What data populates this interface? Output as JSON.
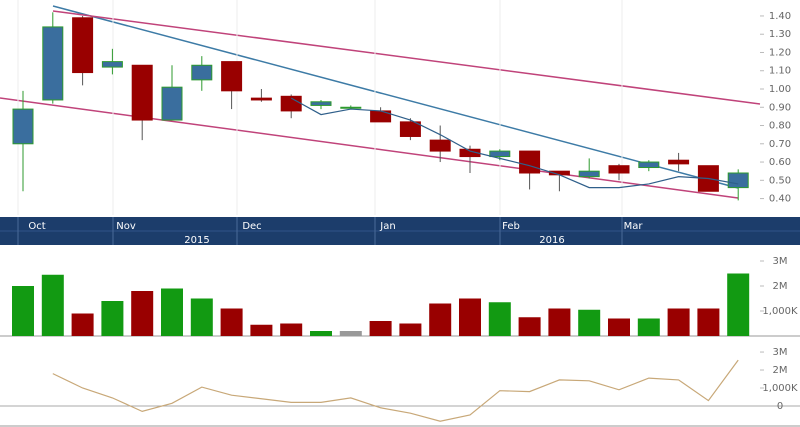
{
  "chart_data": [
    {
      "type": "candlestick",
      "up_color": "#3a6e9e",
      "up_border": "#2e9a2e",
      "down_color": "#990000",
      "open": [
        0.7,
        0.94,
        1.39,
        1.12,
        1.13,
        0.83,
        1.05,
        1.15,
        0.95,
        0.96,
        0.91,
        0.9,
        0.88,
        0.82,
        0.72,
        0.67,
        0.63,
        0.66,
        0.55,
        0.52,
        0.58,
        0.57,
        0.61,
        0.58,
        0.46
      ],
      "high": [
        0.99,
        1.42,
        1.4,
        1.22,
        1.13,
        1.13,
        1.18,
        1.15,
        1.0,
        0.97,
        0.94,
        0.91,
        0.9,
        0.84,
        0.8,
        0.69,
        0.67,
        0.66,
        0.55,
        0.62,
        0.59,
        0.61,
        0.65,
        0.58,
        0.56
      ],
      "low": [
        0.44,
        0.92,
        1.02,
        1.08,
        0.72,
        0.83,
        0.99,
        0.89,
        0.93,
        0.84,
        0.89,
        0.89,
        0.82,
        0.72,
        0.6,
        0.54,
        0.61,
        0.45,
        0.44,
        0.51,
        0.5,
        0.55,
        0.55,
        0.44,
        0.39
      ],
      "close": [
        0.89,
        1.34,
        1.09,
        1.15,
        0.83,
        1.01,
        1.13,
        0.99,
        0.94,
        0.88,
        0.93,
        0.9,
        0.82,
        0.74,
        0.66,
        0.63,
        0.66,
        0.54,
        0.53,
        0.55,
        0.54,
        0.6,
        0.59,
        0.44,
        0.54
      ],
      "ma": [
        null,
        null,
        null,
        null,
        null,
        null,
        null,
        null,
        null,
        0.95,
        0.86,
        0.89,
        0.88,
        0.83,
        0.75,
        0.66,
        0.62,
        0.58,
        0.53,
        0.46,
        0.46,
        0.48,
        0.52,
        0.51,
        0.48
      ],
      "ma_color": "#2f5f8a",
      "ylim": [
        0.31,
        1.46
      ],
      "yticks": [
        {
          "value": 0.4,
          "label": "0.40"
        },
        {
          "value": 0.5,
          "label": "0.50"
        },
        {
          "value": 0.6,
          "label": "0.60"
        },
        {
          "value": 0.7,
          "label": "0.70"
        },
        {
          "value": 0.8,
          "label": "0.80"
        },
        {
          "value": 0.9,
          "label": "0.90"
        },
        {
          "value": 1.0,
          "label": "1.00"
        },
        {
          "value": 1.1,
          "label": "1.10"
        },
        {
          "value": 1.2,
          "label": "1.20"
        },
        {
          "value": 1.3,
          "label": "1.30"
        },
        {
          "value": 1.4,
          "label": "1.40"
        }
      ],
      "months": [
        "Oct",
        "Nov",
        "Dec",
        "Jan",
        "Feb",
        "Mar"
      ],
      "years": [
        "2015",
        "2016"
      ]
    },
    {
      "type": "bar",
      "values": [
        2000000,
        2450000,
        900000,
        1400000,
        1800000,
        1900000,
        1500000,
        1100000,
        450000,
        500000,
        200000,
        200000,
        600000,
        500000,
        1300000,
        1500000,
        1350000,
        750000,
        1100000,
        1050000,
        700000,
        700000,
        1100000,
        1100000,
        2500000
      ],
      "colors": [
        "#129a12",
        "#129a12",
        "#990000",
        "#129a12",
        "#990000",
        "#129a12",
        "#129a12",
        "#990000",
        "#990000",
        "#990000",
        "#129a12",
        "#999999",
        "#990000",
        "#990000",
        "#990000",
        "#990000",
        "#129a12",
        "#990000",
        "#990000",
        "#129a12",
        "#990000",
        "#129a12",
        "#990000",
        "#990000",
        "#129a12"
      ],
      "ylim": [
        0,
        3440000
      ],
      "yticks": [
        {
          "value": 1000000,
          "label": "1,000K"
        },
        {
          "value": 2000000,
          "label": "2M"
        },
        {
          "value": 3000000,
          "label": "3M"
        }
      ]
    },
    {
      "type": "line",
      "color": "#c8a878",
      "values": [
        null,
        1800000,
        1000000,
        450000,
        -300000,
        150000,
        1050000,
        600000,
        400000,
        200000,
        200000,
        450000,
        -100000,
        -400000,
        -850000,
        -500000,
        850000,
        800000,
        1450000,
        1400000,
        900000,
        1550000,
        1450000,
        300000,
        2550000
      ],
      "ylim": [
        -1170000,
        3670000
      ],
      "yticks": [
        0,
        {
          "value": 1000000,
          "label": "1,000K"
        },
        {
          "value": 2000000,
          "label": "2M"
        },
        {
          "value": 3000000,
          "label": "3M"
        }
      ]
    }
  ]
}
